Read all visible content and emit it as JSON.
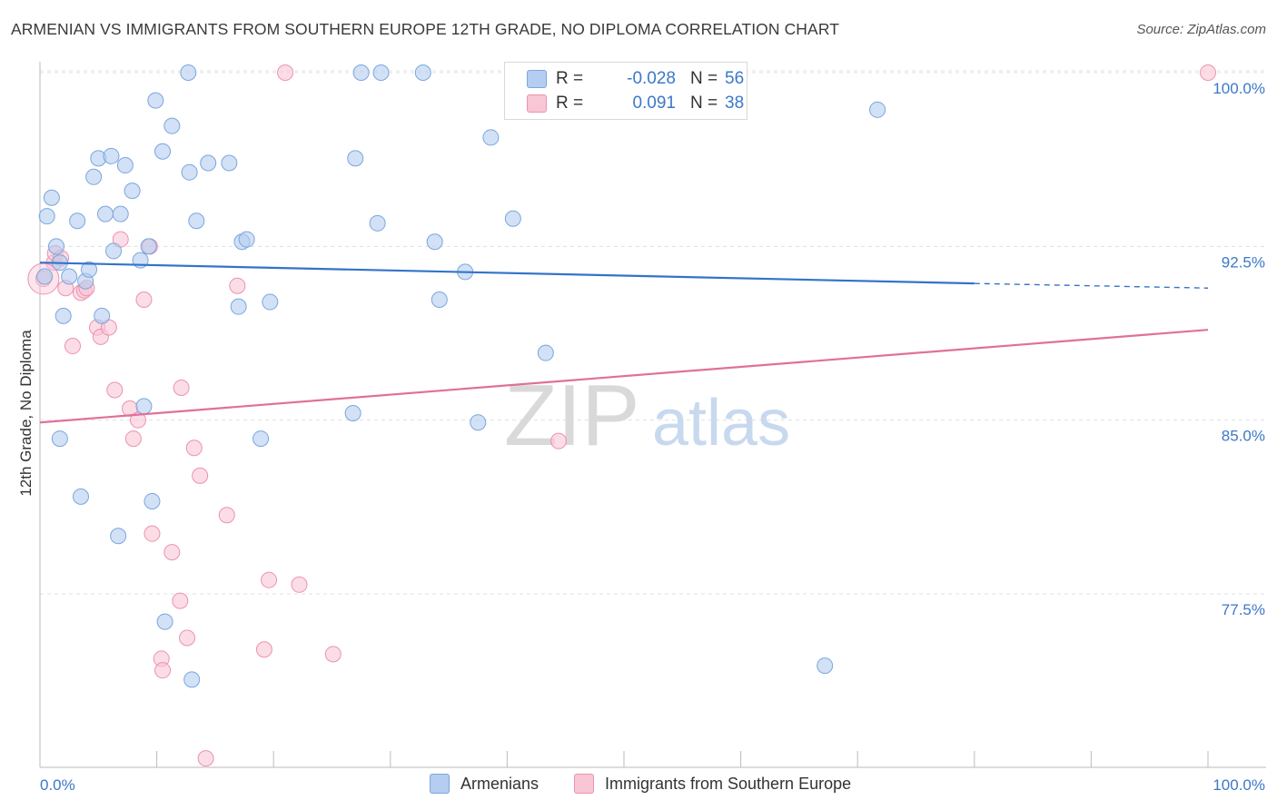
{
  "title": "ARMENIAN VS IMMIGRANTS FROM SOUTHERN EUROPE 12TH GRADE, NO DIPLOMA CORRELATION CHART",
  "source": "Source: ZipAtlas.com",
  "watermark": {
    "zip": "ZIP",
    "atlas": "atlas"
  },
  "legend_top": [
    {
      "r_label": "R =",
      "r_value": "-0.028",
      "n_label": "N =",
      "n_value": "56"
    },
    {
      "r_label": "R =",
      "r_value": "0.091",
      "n_label": "N =",
      "n_value": "38"
    }
  ],
  "legend_bottom": [
    "Armenians",
    "Immigrants from Southern Europe"
  ],
  "colors": {
    "blue_fill": "#b4cdf0",
    "blue_stroke": "#7aa6de",
    "blue_line": "#3373c9",
    "pink_fill": "#f8c6d5",
    "pink_stroke": "#ec92b0",
    "pink_line": "#e0709a",
    "axis_label": "#3c78c8",
    "grid": "#e0e0e0"
  },
  "chart_data": {
    "type": "scatter",
    "title": "ARMENIAN VS IMMIGRANTS FROM SOUTHERN EUROPE 12TH GRADE, NO DIPLOMA CORRELATION CHART",
    "xlabel": "",
    "ylabel": "12th Grade, No Diploma",
    "xlim": [
      0,
      100
    ],
    "ylim": [
      70.4,
      101.0
    ],
    "x_tick_labels": [
      "0.0%",
      "100.0%"
    ],
    "y_ticks": [
      77.5,
      85.0,
      92.5,
      100.0
    ],
    "y_tick_labels": [
      "77.5%",
      "85.0%",
      "92.5%",
      "100.0%"
    ],
    "grid": true,
    "legend_position": "top-center",
    "series": [
      {
        "name": "Armenians",
        "color": "#b4cdf0",
        "points": [
          [
            0.4,
            91.2
          ],
          [
            0.6,
            93.8
          ],
          [
            1.0,
            94.6
          ],
          [
            1.4,
            92.5
          ],
          [
            1.7,
            84.2
          ],
          [
            1.7,
            91.8
          ],
          [
            2.0,
            89.5
          ],
          [
            2.5,
            91.2
          ],
          [
            3.2,
            93.6
          ],
          [
            3.5,
            81.7
          ],
          [
            3.9,
            91.0
          ],
          [
            4.2,
            91.5
          ],
          [
            4.6,
            95.5
          ],
          [
            5.0,
            96.3
          ],
          [
            5.3,
            89.5
          ],
          [
            5.6,
            93.9
          ],
          [
            6.1,
            96.4
          ],
          [
            6.3,
            92.3
          ],
          [
            6.7,
            80.0
          ],
          [
            6.9,
            93.9
          ],
          [
            7.3,
            96.0
          ],
          [
            7.9,
            94.9
          ],
          [
            8.6,
            91.9
          ],
          [
            8.9,
            85.6
          ],
          [
            9.3,
            92.5
          ],
          [
            9.6,
            81.5
          ],
          [
            9.9,
            98.8
          ],
          [
            10.5,
            96.6
          ],
          [
            10.7,
            76.3
          ],
          [
            11.3,
            97.7
          ],
          [
            12.7,
            100.0
          ],
          [
            12.8,
            95.7
          ],
          [
            13.0,
            73.8
          ],
          [
            13.4,
            93.6
          ],
          [
            14.4,
            96.1
          ],
          [
            16.2,
            96.1
          ],
          [
            17.0,
            89.9
          ],
          [
            17.3,
            92.7
          ],
          [
            17.7,
            92.8
          ],
          [
            19.7,
            90.1
          ],
          [
            18.9,
            84.2
          ],
          [
            26.8,
            85.3
          ],
          [
            27.0,
            96.3
          ],
          [
            27.5,
            100.0
          ],
          [
            29.2,
            100.0
          ],
          [
            28.9,
            93.5
          ],
          [
            32.8,
            100.0
          ],
          [
            33.8,
            92.7
          ],
          [
            34.2,
            90.2
          ],
          [
            36.4,
            91.4
          ],
          [
            37.5,
            84.9
          ],
          [
            38.6,
            97.2
          ],
          [
            40.5,
            93.7
          ],
          [
            43.3,
            87.9
          ],
          [
            67.2,
            74.4
          ],
          [
            71.7,
            98.4
          ]
        ]
      },
      {
        "name": "Immigrants from Southern Europe",
        "color": "#f8c6d5",
        "points": [
          [
            0.3,
            91.1
          ],
          [
            1.2,
            91.8
          ],
          [
            1.3,
            92.2
          ],
          [
            1.8,
            92.0
          ],
          [
            2.2,
            90.7
          ],
          [
            2.8,
            88.2
          ],
          [
            3.5,
            90.5
          ],
          [
            3.8,
            90.6
          ],
          [
            4.0,
            90.7
          ],
          [
            4.9,
            89.0
          ],
          [
            5.2,
            88.6
          ],
          [
            5.9,
            89.0
          ],
          [
            6.4,
            86.3
          ],
          [
            6.9,
            92.8
          ],
          [
            7.7,
            85.5
          ],
          [
            8.0,
            84.2
          ],
          [
            8.4,
            85.0
          ],
          [
            8.9,
            90.2
          ],
          [
            9.4,
            92.5
          ],
          [
            9.6,
            80.1
          ],
          [
            10.4,
            74.7
          ],
          [
            10.5,
            74.2
          ],
          [
            11.3,
            79.3
          ],
          [
            12.0,
            77.2
          ],
          [
            12.1,
            86.4
          ],
          [
            12.6,
            75.6
          ],
          [
            13.2,
            83.8
          ],
          [
            13.7,
            82.6
          ],
          [
            14.2,
            70.4
          ],
          [
            16.0,
            80.9
          ],
          [
            16.9,
            90.8
          ],
          [
            19.2,
            75.1
          ],
          [
            19.6,
            78.1
          ],
          [
            21.0,
            100.0
          ],
          [
            22.2,
            77.9
          ],
          [
            25.1,
            74.9
          ],
          [
            44.4,
            84.1
          ],
          [
            100.0,
            100.0
          ]
        ]
      }
    ],
    "trend_lines": [
      {
        "name": "Armenians",
        "x": [
          0,
          80
        ],
        "y": [
          91.8,
          90.9
        ],
        "dashed_to": [
          100,
          90.7
        ]
      },
      {
        "name": "Immigrants from Southern Europe",
        "x": [
          0,
          100
        ],
        "y": [
          84.9,
          88.9
        ]
      }
    ]
  }
}
